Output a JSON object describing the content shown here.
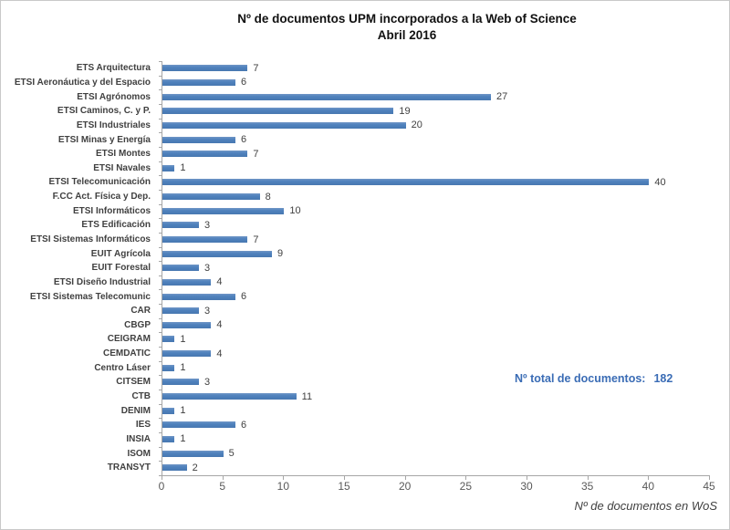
{
  "title": {
    "line1": "Nº de documentos UPM incorporados a la Web of Science",
    "line2": "Abril 2016"
  },
  "chart_data": {
    "type": "bar",
    "orientation": "horizontal",
    "title": "Nº de documentos UPM incorporados a la Web of Science",
    "subtitle": "Abril 2016",
    "categories": [
      "ETS Arquitectura",
      "ETSI Aeronáutica y del Espacio",
      "ETSI Agrónomos",
      "ETSI Caminos, C. y P.",
      "ETSI Industriales",
      "ETSI Minas y Energía",
      "ETSI Montes",
      "ETSI Navales",
      "ETSI Telecomunicación",
      "F.CC Act. Física y Dep.",
      "ETSI Informáticos",
      "ETS Edificación",
      "ETSI Sistemas Informáticos",
      "EUIT Agrícola",
      "EUIT Forestal",
      "ETSI Diseño Industrial",
      "ETSI Sistemas Telecomunic",
      "CAR",
      "CBGP",
      "CEIGRAM",
      "CEMDATIC",
      "Centro Láser",
      "CITSEM",
      "CTB",
      "DENIM",
      "IES",
      "INSIA",
      "ISOM",
      "TRANSYT"
    ],
    "values": [
      7,
      6,
      27,
      19,
      20,
      6,
      7,
      1,
      40,
      8,
      10,
      3,
      7,
      9,
      3,
      4,
      6,
      3,
      4,
      1,
      4,
      1,
      3,
      11,
      1,
      6,
      1,
      5,
      2
    ],
    "xlabel": "Nº de documentos en WoS",
    "ylabel": "",
    "xlim": [
      0,
      45
    ],
    "xticks": [
      0,
      5,
      10,
      15,
      20,
      25,
      30,
      35,
      40,
      45
    ],
    "grid": false,
    "legend": false,
    "data_labels": true,
    "annotation": {
      "label": "Nº total de documentos:",
      "value": "182"
    }
  },
  "colors": {
    "bar": "#4F81BD",
    "annotation_text": "#3A6CB5",
    "axis_line": "#A6A6A6",
    "tick_label": "#595959",
    "category_label": "#404040",
    "title_text": "#111111"
  }
}
